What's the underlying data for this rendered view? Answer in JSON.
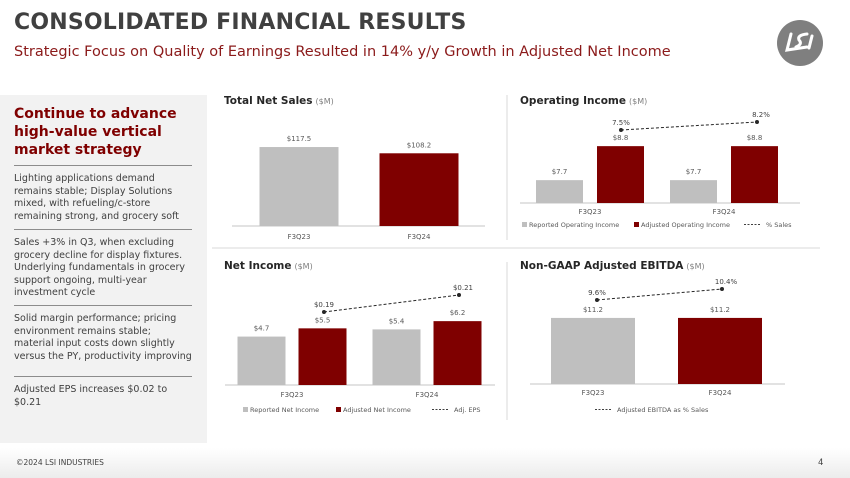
{
  "header": {
    "title": "CONSOLIDATED FINANCIAL RESULTS",
    "subtitle": "Strategic Focus on Quality of Earnings Resulted in 14% y/y Growth in Adjusted Net Income",
    "logo_text": "LSI"
  },
  "left_panel": {
    "heading": "Continue to advance high-value vertical market strategy",
    "items": [
      "Lighting applications demand remains stable; Display Solutions mixed, with refueling/c-store remaining strong, and grocery soft",
      "Sales +3% in Q3, when excluding grocery decline for display fixtures. Underlying fundamentals in grocery support ongoing, multi-year investment cycle",
      "Solid margin performance; pricing environment remains stable; material input costs down slightly versus the PY, productivity improving",
      "Adjusted EPS increases $0.02 to $0.21"
    ]
  },
  "colors": {
    "reported": "#bfbfbf",
    "adjusted": "#7f0000",
    "line": "#262626",
    "accent": "#8b1a1a"
  },
  "chart_data": [
    {
      "type": "bar",
      "title": "Total Net Sales",
      "unit": "($M)",
      "categories": [
        "F3Q23",
        "F3Q24"
      ],
      "series": [
        {
          "values": [
            117.5,
            108.2
          ],
          "labels": [
            "$117.5",
            "$108.2"
          ],
          "colors": [
            "#bfbfbf",
            "#7f0000"
          ]
        }
      ]
    },
    {
      "type": "bar",
      "title": "Operating Income",
      "unit": "($M)",
      "categories": [
        "F3Q23",
        "F3Q24"
      ],
      "series": [
        {
          "name": "Reported Operating Income",
          "values": [
            7.7,
            7.7
          ],
          "labels": [
            "$7.7",
            "$7.7"
          ]
        },
        {
          "name": "Adjusted Operating Income",
          "values": [
            8.8,
            8.8
          ],
          "labels": [
            "$8.8",
            "$8.8"
          ]
        }
      ],
      "line": {
        "name": "% Sales",
        "values": [
          7.5,
          8.2
        ],
        "labels": [
          "7.5%",
          "8.2%"
        ]
      },
      "legend": "bottom"
    },
    {
      "type": "bar",
      "title": "Net Income",
      "unit": "($M)",
      "categories": [
        "F3Q23",
        "F3Q24"
      ],
      "series": [
        {
          "name": "Reported Net Income",
          "values": [
            4.7,
            5.4
          ],
          "labels": [
            "$4.7",
            "$5.4"
          ]
        },
        {
          "name": "Adjusted Net Income",
          "values": [
            5.5,
            6.2
          ],
          "labels": [
            "$5.5",
            "$6.2"
          ]
        }
      ],
      "line": {
        "name": "Adj. EPS",
        "values": [
          0.19,
          0.21
        ],
        "labels": [
          "$0.19",
          "$0.21"
        ]
      },
      "legend": "bottom"
    },
    {
      "type": "bar",
      "title": "Non-GAAP Adjusted EBITDA",
      "unit": "($M)",
      "categories": [
        "F3Q23",
        "F3Q24"
      ],
      "series": [
        {
          "values": [
            11.2,
            11.2
          ],
          "labels": [
            "$11.2",
            "$11.2"
          ],
          "colors": [
            "#bfbfbf",
            "#7f0000"
          ]
        }
      ],
      "line": {
        "name": "Adjusted EBITDA as % Sales",
        "values": [
          9.6,
          10.4
        ],
        "labels": [
          "9.6%",
          "10.4%"
        ]
      },
      "legend": "bottom"
    }
  ],
  "footer": {
    "copyright": "©2024 LSI INDUSTRIES",
    "page": "4"
  }
}
